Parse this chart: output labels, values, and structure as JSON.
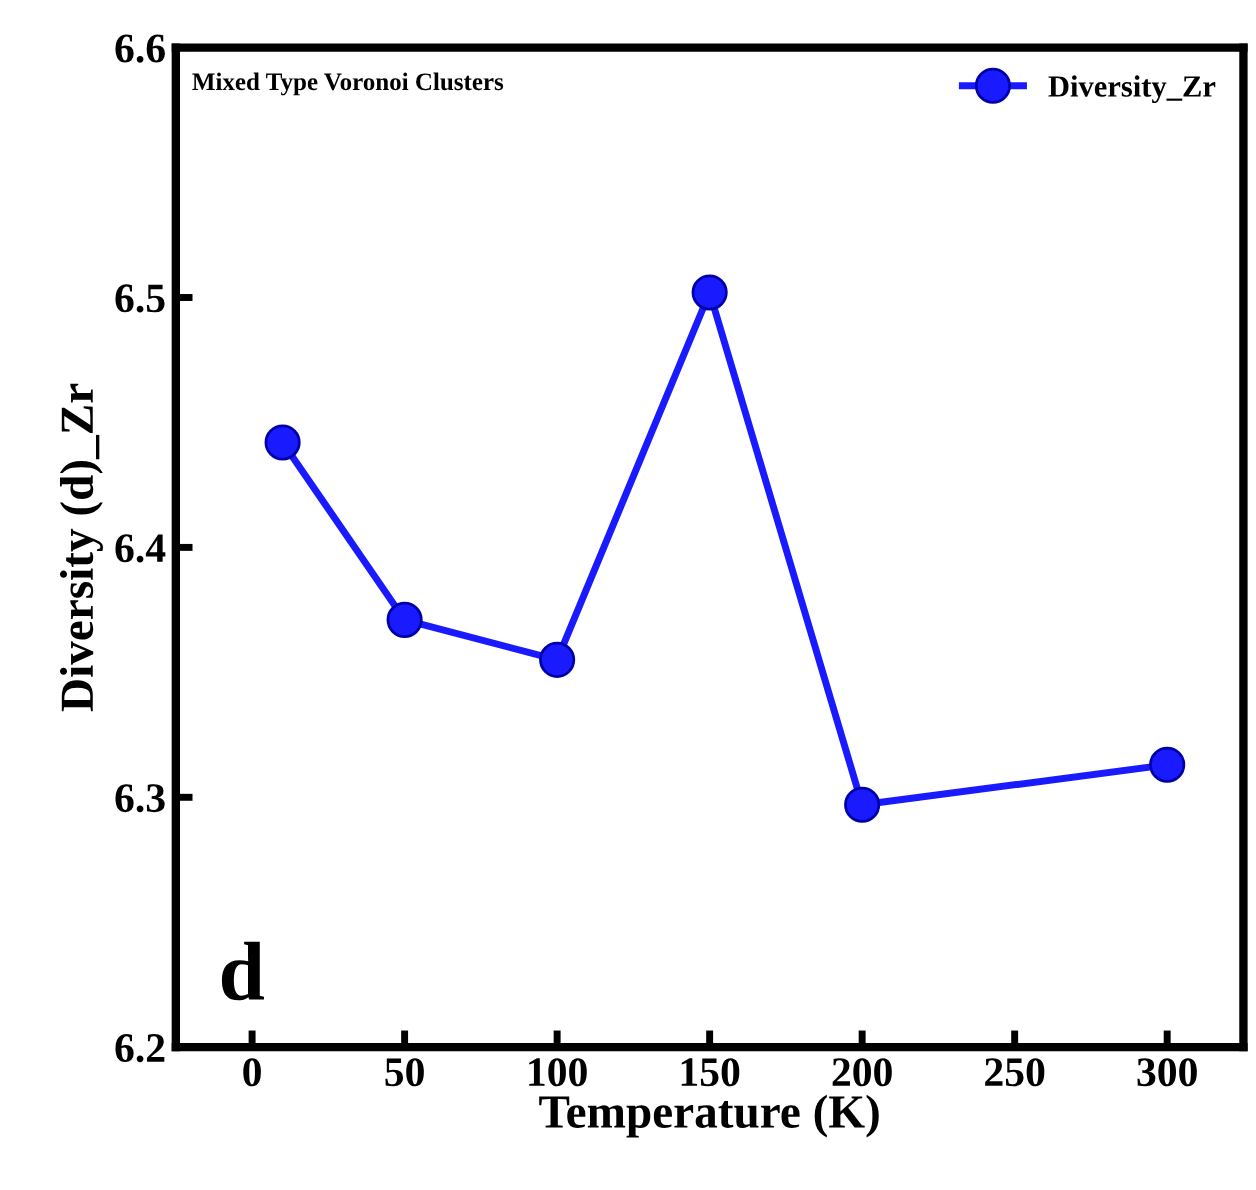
{
  "chart_data": {
    "type": "line",
    "xlabel": "Temperature (K)",
    "ylabel": "Diversity (d)_Zr",
    "x": [
      10,
      50,
      100,
      150,
      200,
      300
    ],
    "series": [
      {
        "name": "Diversity_Zr",
        "color": "#1a1aff",
        "values": [
          6.442,
          6.371,
          6.355,
          6.502,
          6.297,
          6.313
        ]
      }
    ],
    "xlim": [
      -25,
      325
    ],
    "xticks": [
      0,
      50,
      100,
      150,
      200,
      250,
      300
    ],
    "ylim": [
      6.2,
      6.6
    ],
    "yticks": [
      6.2,
      6.3,
      6.4,
      6.5,
      6.6
    ],
    "annotations": [
      "Mixed Type Voronoi Clusters",
      "d"
    ],
    "marker": "circle",
    "line_style": "solid",
    "legend": "top right",
    "grid": false
  }
}
